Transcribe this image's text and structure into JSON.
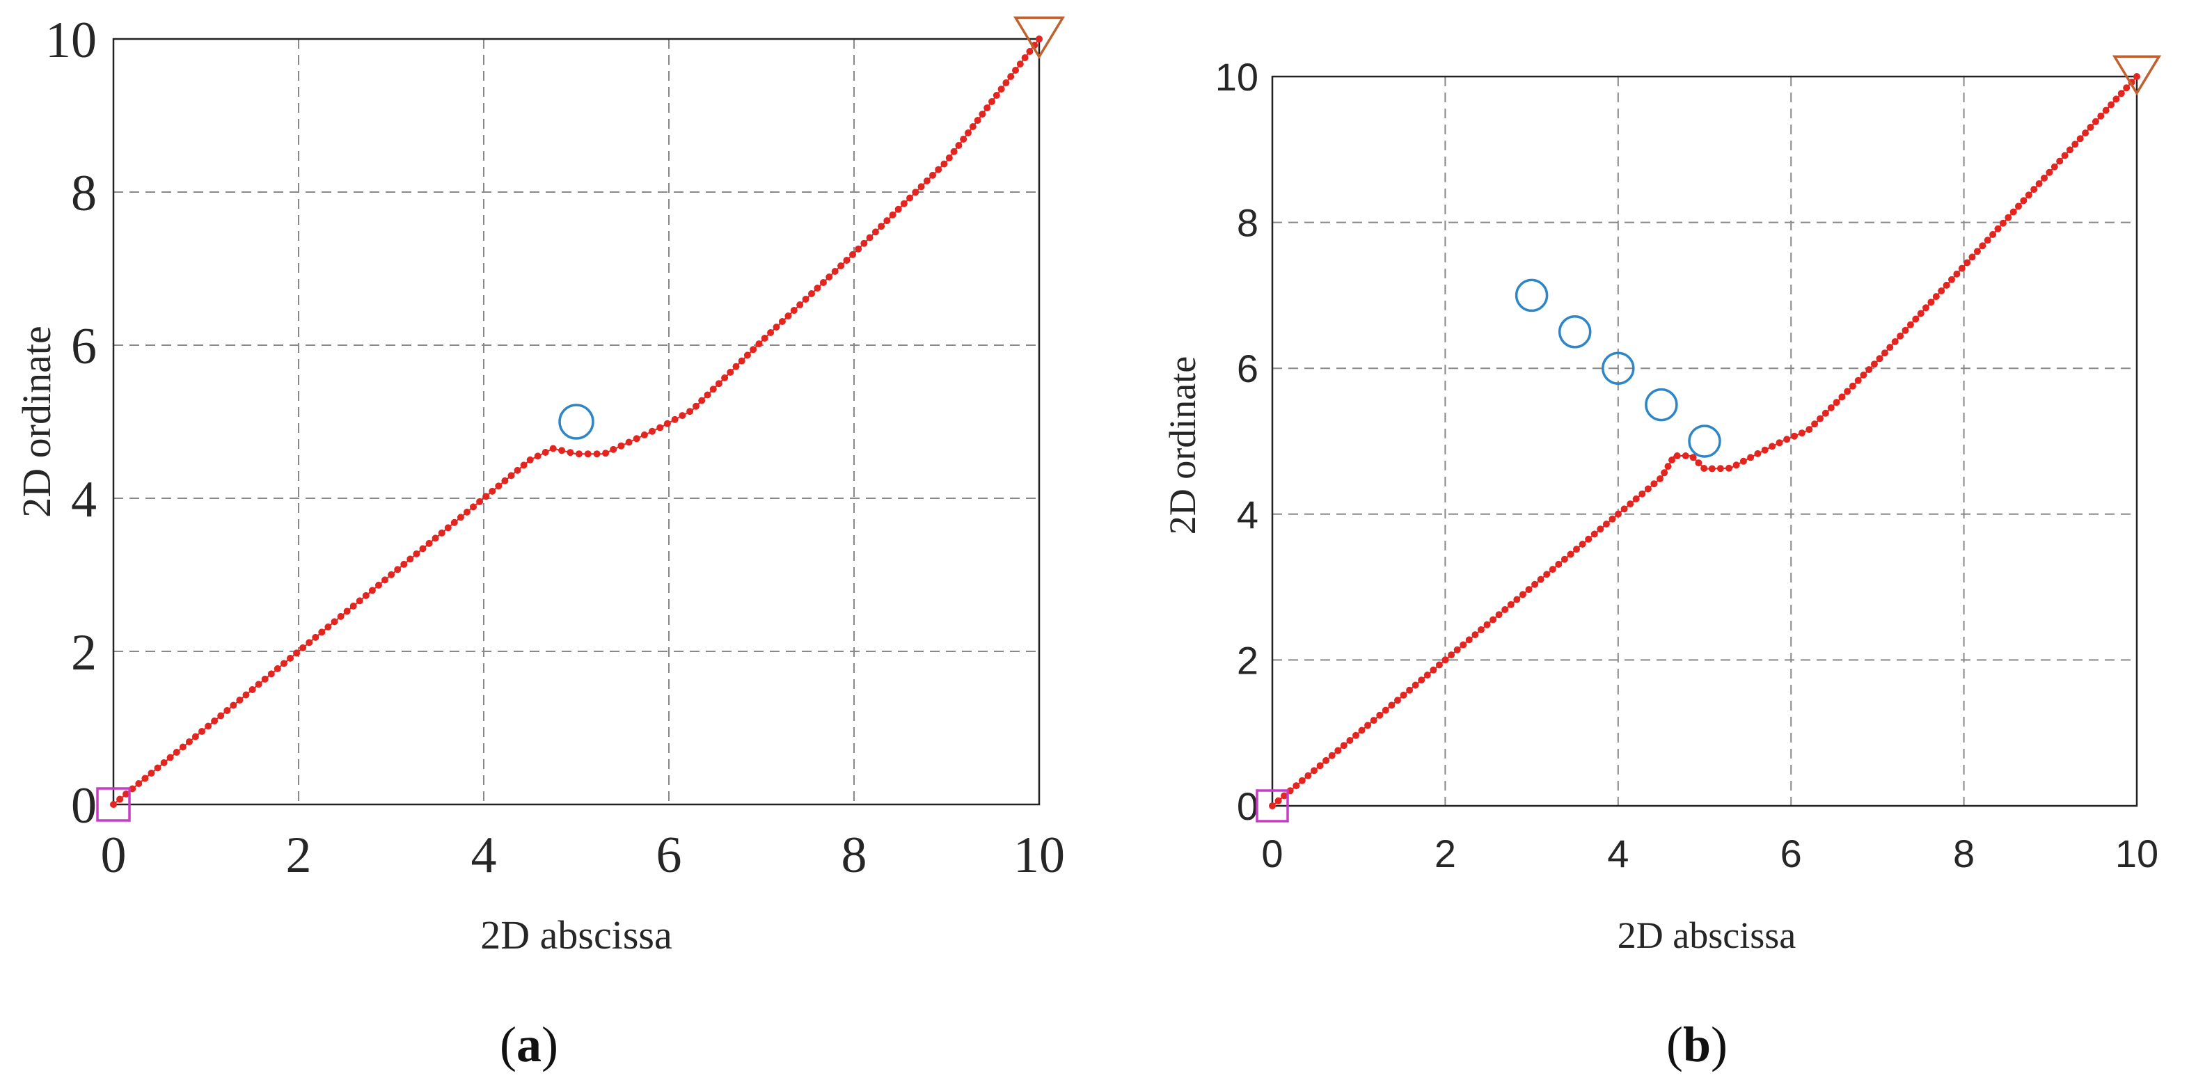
{
  "figure": {
    "panels": [
      {
        "caption_open": "(",
        "caption_letter": "a",
        "caption_close": ")"
      },
      {
        "caption_open": "(",
        "caption_letter": "b",
        "caption_close": ")"
      }
    ]
  },
  "chart_data": [
    {
      "type": "scatter",
      "title": "",
      "xlabel": "2D abscissa",
      "ylabel": "2D ordinate",
      "xlim": [
        0,
        10
      ],
      "ylim": [
        0,
        10
      ],
      "xticks": [
        "0",
        "2",
        "4",
        "6",
        "8",
        "10"
      ],
      "yticks": [
        "0",
        "2",
        "4",
        "6",
        "8",
        "10"
      ],
      "grid": true,
      "grid_style": "dashed",
      "start": {
        "x": 0,
        "y": 0,
        "marker": "square",
        "color": "#c63cc6"
      },
      "goal": {
        "x": 10,
        "y": 10,
        "marker": "triangle-down",
        "color": "#c0602e"
      },
      "obstacles": [
        {
          "x": 5,
          "y": 5
        }
      ],
      "series": [
        {
          "color": "#e3241f",
          "marker": "dot",
          "points": [
            [
              0,
              0
            ],
            [
              1,
              1
            ],
            [
              2,
              2
            ],
            [
              3,
              3
            ],
            [
              4,
              4
            ],
            [
              4.5,
              4.5
            ],
            [
              4.75,
              4.65
            ],
            [
              5,
              4.58
            ],
            [
              5.3,
              4.58
            ],
            [
              5.6,
              4.75
            ],
            [
              5.9,
              4.92
            ],
            [
              6.25,
              5.15
            ],
            [
              6.5,
              5.45
            ],
            [
              7,
              6.05
            ],
            [
              8,
              7.2
            ],
            [
              9,
              8.4
            ],
            [
              10,
              10
            ]
          ]
        }
      ]
    },
    {
      "type": "scatter",
      "title": "",
      "xlabel": "2D abscissa",
      "ylabel": "2D ordinate",
      "xlim": [
        0,
        10
      ],
      "ylim": [
        0,
        10
      ],
      "xticks": [
        "0",
        "2",
        "4",
        "6",
        "8",
        "10"
      ],
      "yticks": [
        "0",
        "2",
        "4",
        "6",
        "8",
        "10"
      ],
      "grid": true,
      "grid_style": "dashed",
      "start": {
        "x": 0,
        "y": 0,
        "marker": "square",
        "color": "#c63cc6"
      },
      "goal": {
        "x": 10,
        "y": 10,
        "marker": "triangle-down",
        "color": "#c0602e"
      },
      "obstacles": [
        {
          "x": 3,
          "y": 7
        },
        {
          "x": 3.5,
          "y": 6.5
        },
        {
          "x": 4,
          "y": 6
        },
        {
          "x": 4.5,
          "y": 5.5
        },
        {
          "x": 5,
          "y": 5
        }
      ],
      "series": [
        {
          "color": "#e3241f",
          "marker": "dot",
          "points": [
            [
              0,
              0
            ],
            [
              1,
              1
            ],
            [
              2,
              2
            ],
            [
              3,
              3
            ],
            [
              4,
              4
            ],
            [
              4.5,
              4.5
            ],
            [
              4.65,
              4.8
            ],
            [
              4.85,
              4.8
            ],
            [
              5.0,
              4.62
            ],
            [
              5.3,
              4.63
            ],
            [
              5.6,
              4.82
            ],
            [
              5.9,
              5.0
            ],
            [
              6.2,
              5.15
            ],
            [
              6.5,
              5.5
            ],
            [
              7,
              6.1
            ],
            [
              8,
              7.4
            ],
            [
              9,
              8.7
            ],
            [
              10,
              10
            ]
          ]
        }
      ]
    }
  ]
}
